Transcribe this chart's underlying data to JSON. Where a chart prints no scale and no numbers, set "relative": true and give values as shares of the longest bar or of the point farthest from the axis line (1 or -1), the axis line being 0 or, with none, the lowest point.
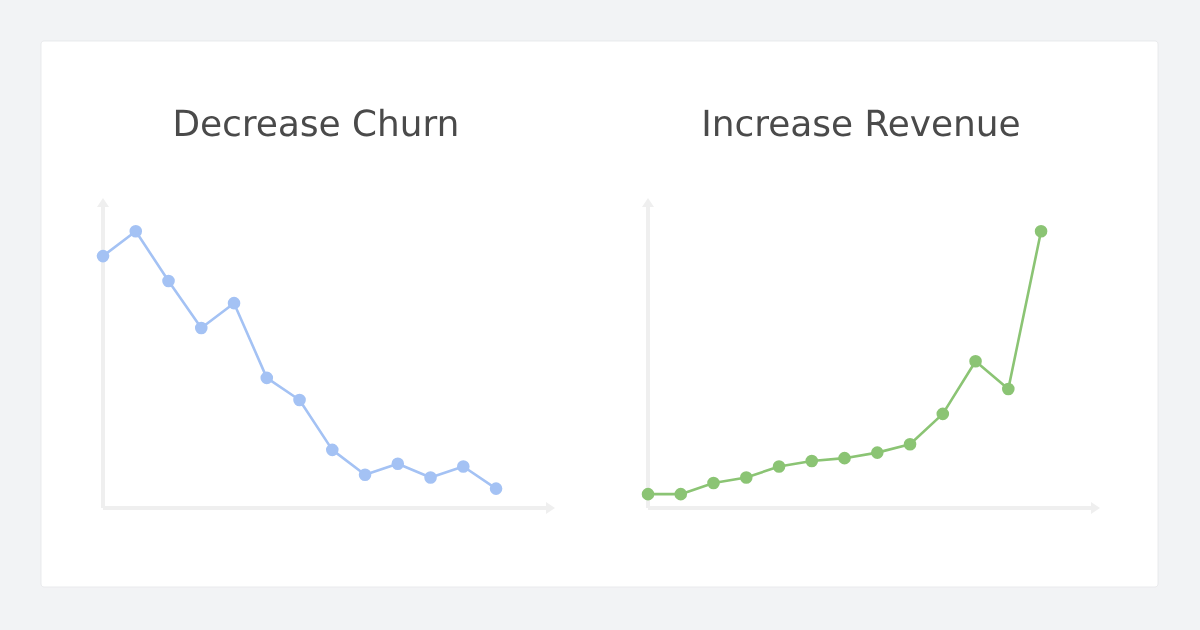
{
  "chart_data": [
    {
      "type": "line",
      "title": "Decrease Churn",
      "relative": true,
      "marker": "circle",
      "color": "#a4c2f4",
      "categories": [
        null,
        null,
        null,
        null,
        null,
        null,
        null,
        null,
        null,
        null,
        null,
        null,
        null
      ],
      "values": [
        0.91,
        1,
        0.82,
        0.65,
        0.74,
        0.47,
        0.39,
        0.21,
        0.12,
        0.16,
        0.11,
        0.15,
        0.07
      ]
    },
    {
      "type": "line",
      "title": "Increase Revenue",
      "relative": true,
      "marker": "circle",
      "color": "#8bc474",
      "categories": [
        null,
        null,
        null,
        null,
        null,
        null,
        null,
        null,
        null,
        null,
        null,
        null,
        null
      ],
      "values": [
        0.05,
        0.05,
        0.09,
        0.11,
        0.15,
        0.17,
        0.18,
        0.2,
        0.23,
        0.34,
        0.53,
        0.43,
        1
      ]
    }
  ]
}
